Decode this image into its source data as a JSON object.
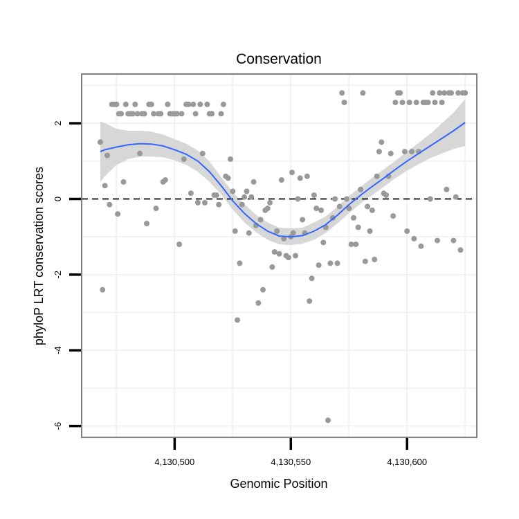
{
  "chart_data": {
    "type": "scatter",
    "title": "Conservation",
    "xlabel": "Genomic Position",
    "ylabel": "phyloP LRT conservation scores",
    "xlim": [
      4130460,
      4130630
    ],
    "ylim": [
      -6.3,
      3.3
    ],
    "xticks": [
      4130500,
      4130550,
      4130600
    ],
    "xtick_labels": [
      "4,130,500",
      "4,130,550",
      "4,130,600"
    ],
    "yticks": [
      2,
      0,
      -2,
      -4,
      -6
    ],
    "ytick_labels": [
      "2",
      "0",
      "-2",
      "-4",
      "-6"
    ],
    "reference_line": {
      "y": 0,
      "style": "dashed"
    },
    "colors": {
      "points": "#999999",
      "smooth": "#3366FF",
      "band": "#D3D3D3",
      "panel_border": "#7F7F7F",
      "grid": "#F2F2F2"
    },
    "points": [
      [
        4130468,
        1.5
      ],
      [
        4130469,
        -2.4
      ],
      [
        4130470,
        0.35
      ],
      [
        4130471,
        1.15
      ],
      [
        4130472,
        -0.15
      ],
      [
        4130473,
        2.5
      ],
      [
        4130474,
        2.5
      ],
      [
        4130475,
        2.5
      ],
      [
        4130475.5,
        -0.4
      ],
      [
        4130476,
        2.25
      ],
      [
        4130477,
        2.25
      ],
      [
        4130478,
        0.45
      ],
      [
        4130479,
        2.5
      ],
      [
        4130480,
        2.25
      ],
      [
        4130481,
        2.25
      ],
      [
        4130482,
        2.25
      ],
      [
        4130483,
        2.5
      ],
      [
        4130484,
        2.25
      ],
      [
        4130485,
        1.2
      ],
      [
        4130486,
        2.25
      ],
      [
        4130487,
        2.25
      ],
      [
        4130488,
        -0.65
      ],
      [
        4130489,
        2.5
      ],
      [
        4130490,
        2.5
      ],
      [
        4130491,
        2.25
      ],
      [
        4130492,
        -0.25
      ],
      [
        4130493,
        2.25
      ],
      [
        4130494,
        2.25
      ],
      [
        4130495,
        0.45
      ],
      [
        4130496,
        0.5
      ],
      [
        4130497,
        2.5
      ],
      [
        4130498,
        2.25
      ],
      [
        4130499,
        2.25
      ],
      [
        4130500,
        2.25
      ],
      [
        4130501,
        2.25
      ],
      [
        4130502,
        -1.2
      ],
      [
        4130503,
        2.25
      ],
      [
        4130504,
        1.05
      ],
      [
        4130505,
        2.5
      ],
      [
        4130506,
        2.5
      ],
      [
        4130507,
        0.15
      ],
      [
        4130508,
        2.5
      ],
      [
        4130509,
        2.25
      ],
      [
        4130510,
        -0.1
      ],
      [
        4130511,
        2.5
      ],
      [
        4130512,
        1.2
      ],
      [
        4130513,
        -0.1
      ],
      [
        4130514,
        2.5
      ],
      [
        4130515,
        2.25
      ],
      [
        4130516,
        2.25
      ],
      [
        4130517,
        0.1
      ],
      [
        4130518,
        0.1
      ],
      [
        4130519,
        -0.15
      ],
      [
        4130520,
        2.25
      ],
      [
        4130521,
        2.5
      ],
      [
        4130522,
        0.6
      ],
      [
        4130523,
        0.55
      ],
      [
        4130524,
        1.05
      ],
      [
        4130525,
        0.2
      ],
      [
        4130526,
        -0.85
      ],
      [
        4130527,
        -3.2
      ],
      [
        4130528,
        -1.7
      ],
      [
        4130529,
        -0.15
      ],
      [
        4130530,
        0.05
      ],
      [
        4130531,
        0.2
      ],
      [
        4130532,
        -0.9
      ],
      [
        4130533,
        0.05
      ],
      [
        4130534,
        0.45
      ],
      [
        4130535,
        -0.7
      ],
      [
        4130536,
        -2.75
      ],
      [
        4130537,
        -0.55
      ],
      [
        4130538,
        -2.4
      ],
      [
        4130539,
        -0.3
      ],
      [
        4130540,
        -0.25
      ],
      [
        4130541,
        -0.1
      ],
      [
        4130542,
        -1.8
      ],
      [
        4130543,
        -1.4
      ],
      [
        4130544,
        -0.85
      ],
      [
        4130545,
        -1.45
      ],
      [
        4130546,
        0.5
      ],
      [
        4130547,
        -1.05
      ],
      [
        4130548,
        -1.5
      ],
      [
        4130549,
        -1.55
      ],
      [
        4130550,
        -1.0
      ],
      [
        4130550.5,
        0.7
      ],
      [
        4130551,
        -0.9
      ],
      [
        4130552,
        -1.5
      ],
      [
        4130553,
        0.0
      ],
      [
        4130554,
        0.55
      ],
      [
        4130555,
        -0.55
      ],
      [
        4130556,
        -0.9
      ],
      [
        4130557,
        0.6
      ],
      [
        4130558,
        -2.7
      ],
      [
        4130559,
        -2.1
      ],
      [
        4130560,
        0.1
      ],
      [
        4130561,
        -0.25
      ],
      [
        4130562,
        -1.75
      ],
      [
        4130563,
        -0.3
      ],
      [
        4130564,
        -1.15
      ],
      [
        4130565,
        -0.75
      ],
      [
        4130566,
        -5.85
      ],
      [
        4130567,
        -1.7
      ],
      [
        4130568,
        -0.5
      ],
      [
        4130569,
        0.0
      ],
      [
        4130570,
        -1.7
      ],
      [
        4130571,
        -0.2
      ],
      [
        4130572,
        2.8
      ],
      [
        4130573,
        2.55
      ],
      [
        4130574,
        0.0
      ],
      [
        4130575,
        -0.25
      ],
      [
        4130576,
        -1.2
      ],
      [
        4130577,
        -0.5
      ],
      [
        4130578,
        -1.2
      ],
      [
        4130579,
        -0.75
      ],
      [
        4130580,
        0.25
      ],
      [
        4130581,
        2.8
      ],
      [
        4130582,
        -1.65
      ],
      [
        4130583,
        -0.2
      ],
      [
        4130584,
        -0.85
      ],
      [
        4130585,
        -0.3
      ],
      [
        4130586,
        -1.6
      ],
      [
        4130587,
        0.6
      ],
      [
        4130588,
        1.25
      ],
      [
        4130589,
        1.5
      ],
      [
        4130590,
        0.15
      ],
      [
        4130591,
        0.1
      ],
      [
        4130592,
        0.6
      ],
      [
        4130593,
        1.2
      ],
      [
        4130594,
        -0.45
      ],
      [
        4130595,
        2.55
      ],
      [
        4130596,
        2.8
      ],
      [
        4130597,
        2.8
      ],
      [
        4130598,
        2.55
      ],
      [
        4130599,
        1.25
      ],
      [
        4130600,
        -0.85
      ],
      [
        4130601,
        2.55
      ],
      [
        4130602,
        1.25
      ],
      [
        4130603,
        -1.05
      ],
      [
        4130604,
        2.55
      ],
      [
        4130605,
        1.25
      ],
      [
        4130606,
        -1.25
      ],
      [
        4130607,
        2.55
      ],
      [
        4130608,
        2.55
      ],
      [
        4130609,
        2.55
      ],
      [
        4130610,
        0.0
      ],
      [
        4130611,
        2.8
      ],
      [
        4130612,
        2.55
      ],
      [
        4130613,
        -1.1
      ],
      [
        4130614,
        2.8
      ],
      [
        4130615,
        2.55
      ],
      [
        4130616,
        2.8
      ],
      [
        4130617,
        0.25
      ],
      [
        4130618,
        2.8
      ],
      [
        4130619,
        2.8
      ],
      [
        4130620,
        -1.1
      ],
      [
        4130621,
        0.05
      ],
      [
        4130622,
        2.8
      ],
      [
        4130623,
        -1.35
      ],
      [
        4130624,
        2.8
      ],
      [
        4130625,
        2.8
      ]
    ],
    "smooth": {
      "x": [
        4130468,
        4130470,
        4130475,
        4130480,
        4130485,
        4130490,
        4130495,
        4130500,
        4130505,
        4130510,
        4130515,
        4130520,
        4130525,
        4130530,
        4130535,
        4130540,
        4130545,
        4130550,
        4130555,
        4130560,
        4130565,
        4130570,
        4130575,
        4130580,
        4130585,
        4130590,
        4130595,
        4130600,
        4130605,
        4130610,
        4130615,
        4130620,
        4130625
      ],
      "y": [
        1.25,
        1.3,
        1.37,
        1.43,
        1.46,
        1.45,
        1.4,
        1.3,
        1.18,
        1.0,
        0.72,
        0.35,
        -0.05,
        -0.38,
        -0.65,
        -0.85,
        -0.98,
        -1.0,
        -0.97,
        -0.85,
        -0.68,
        -0.43,
        -0.15,
        0.1,
        0.33,
        0.55,
        0.78,
        1.0,
        1.2,
        1.4,
        1.6,
        1.8,
        2.02
      ],
      "lower": [
        0.45,
        0.6,
        0.9,
        1.05,
        1.12,
        1.12,
        1.1,
        1.02,
        0.9,
        0.72,
        0.45,
        0.12,
        -0.28,
        -0.62,
        -0.88,
        -1.08,
        -1.2,
        -1.22,
        -1.18,
        -1.08,
        -0.9,
        -0.65,
        -0.38,
        -0.12,
        0.1,
        0.32,
        0.55,
        0.75,
        0.92,
        1.08,
        1.2,
        1.32,
        1.4
      ],
      "upper": [
        2.05,
        2.0,
        1.85,
        1.8,
        1.8,
        1.78,
        1.7,
        1.58,
        1.46,
        1.28,
        0.99,
        0.58,
        0.18,
        -0.14,
        -0.42,
        -0.62,
        -0.76,
        -0.78,
        -0.76,
        -0.62,
        -0.46,
        -0.21,
        0.08,
        0.32,
        0.56,
        0.78,
        1.01,
        1.25,
        1.48,
        1.72,
        2.0,
        2.28,
        2.64
      ]
    }
  }
}
